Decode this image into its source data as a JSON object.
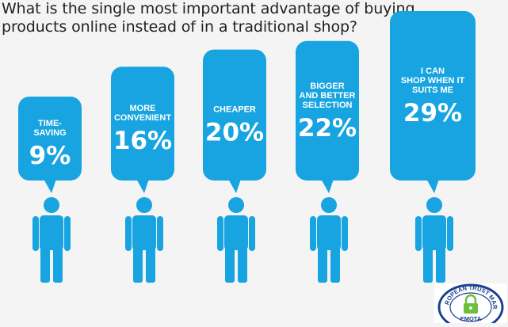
{
  "colors": {
    "bubble": "#17a4e0",
    "person": "#17a4e0",
    "background": "#f4f4f4",
    "title": "#222222",
    "logo_blue": "#1b3f8f",
    "logo_green": "#6cbf3a"
  },
  "chart_data": {
    "type": "bar",
    "title": "What is the single most important advantage of buying products online instead of in a traditional shop?",
    "unit": "%",
    "categories": [
      [
        "TIME-",
        "SAVING"
      ],
      [
        "MORE",
        "CONVENIENT"
      ],
      [
        "CHEAPER"
      ],
      [
        "BIGGER",
        "AND BETTER",
        "SELECTION"
      ],
      [
        "I CAN",
        "SHOP WHEN IT",
        "SUITS ME"
      ]
    ],
    "values": [
      9,
      16,
      20,
      22,
      29
    ],
    "value_labels": [
      "9%",
      "16%",
      "20%",
      "22%",
      "29%"
    ],
    "ylim": [
      0,
      29
    ]
  },
  "logo": {
    "ring_text": "EUROPEAN TRUST MARK",
    "bottom_text": "EMOTA",
    "icon": "padlock-icon"
  }
}
